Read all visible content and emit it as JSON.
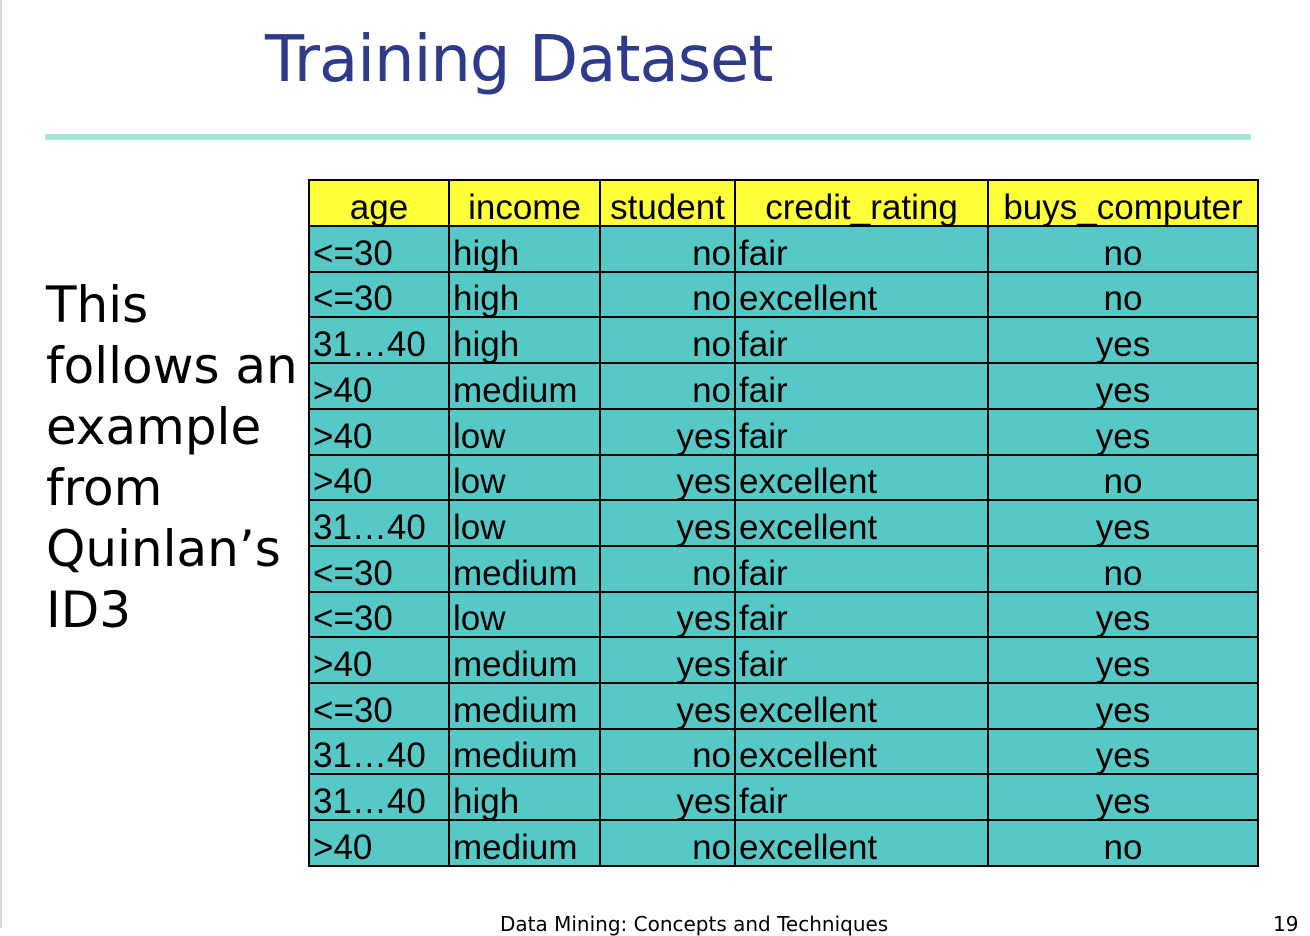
{
  "slide": {
    "title": "Training Dataset",
    "side_text": [
      "This",
      "follows an",
      "example",
      "from",
      "Quinlan’s",
      "ID3"
    ],
    "footer": "Data Mining: Concepts and Techniques",
    "page_number": "19",
    "colors": {
      "title": "#2e3a8c",
      "rule": "#a8e6dc",
      "header_bg": "#ffff3a",
      "cell_bg": "#56c8c6"
    }
  },
  "table": {
    "headers": [
      "age",
      "income",
      "student",
      "credit_rating",
      "buys_computer"
    ],
    "rows": [
      [
        "<=30",
        "high",
        "no",
        "fair",
        "no"
      ],
      [
        "<=30",
        "high",
        "no",
        "excellent",
        "no"
      ],
      [
        "31…40",
        "high",
        "no",
        "fair",
        "yes"
      ],
      [
        ">40",
        "medium",
        "no",
        "fair",
        "yes"
      ],
      [
        ">40",
        "low",
        "yes",
        "fair",
        "yes"
      ],
      [
        ">40",
        "low",
        "yes",
        "excellent",
        "no"
      ],
      [
        "31…40",
        "low",
        "yes",
        "excellent",
        "yes"
      ],
      [
        "<=30",
        "medium",
        "no",
        "fair",
        "no"
      ],
      [
        "<=30",
        "low",
        "yes",
        "fair",
        "yes"
      ],
      [
        ">40",
        "medium",
        "yes",
        "fair",
        "yes"
      ],
      [
        "<=30",
        "medium",
        "yes",
        "excellent",
        "yes"
      ],
      [
        "31…40",
        "medium",
        "no",
        "excellent",
        "yes"
      ],
      [
        "31…40",
        "high",
        "yes",
        "fair",
        "yes"
      ],
      [
        ">40",
        "medium",
        "no",
        "excellent",
        "no"
      ]
    ]
  }
}
